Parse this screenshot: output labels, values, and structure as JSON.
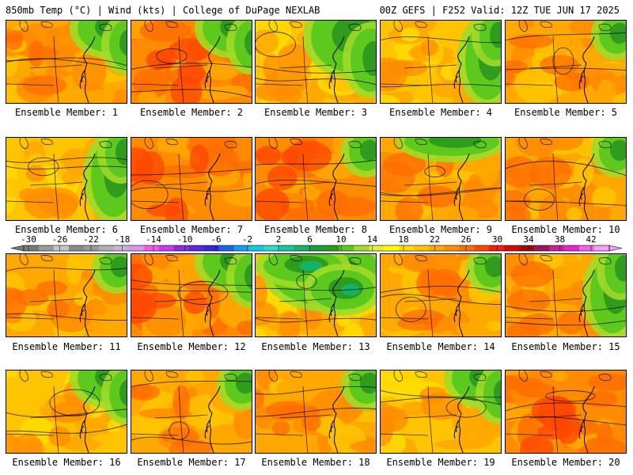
{
  "header": {
    "left": "850mb Temp (°C) | Wind (kts) | College of DuPage NEXLAB",
    "right": "00Z GEFS | F252 Valid: 12Z TUE JUN 17 2025"
  },
  "colorbar": {
    "labels": [
      "-30",
      "-26",
      "-22",
      "-18",
      "-14",
      "-10",
      "-6",
      "-2",
      "2",
      "6",
      "10",
      "14",
      "18",
      "22",
      "26",
      "30",
      "34",
      "38",
      "42"
    ],
    "colors": [
      "#7a7a7a",
      "#9b9b9b",
      "#c5c5c5",
      "#8a8a8a",
      "#9a9a9a",
      "#b0b0b0",
      "#c8b4d8",
      "#d896e8",
      "#f05ae6",
      "#c83ce8",
      "#8c2ce0",
      "#5a28d8",
      "#3628d8",
      "#1e64e6",
      "#14a0f0",
      "#14c8e6",
      "#28dcc8",
      "#14c8a0",
      "#14b46e",
      "#18a03c",
      "#2c9a1e",
      "#5ac81e",
      "#a0dc28",
      "#e6f028",
      "#ffff00",
      "#ffdc00",
      "#ffc400",
      "#ffa800",
      "#ff8c00",
      "#ff6e00",
      "#ff4600",
      "#f01e0a",
      "#d20a0a",
      "#a00a0a",
      "#a0145a",
      "#c81e96",
      "#e628c8",
      "#f064e6",
      "#f5a0f0"
    ]
  },
  "panels": [
    {
      "label": "Ensemble Member: 1",
      "warmth": 0.55,
      "green": "ne"
    },
    {
      "label": "Ensemble Member: 2",
      "warmth": 0.85,
      "green": "ne"
    },
    {
      "label": "Ensemble Member: 3",
      "warmth": 0.4,
      "green": "ne-large"
    },
    {
      "label": "Ensemble Member: 4",
      "warmth": 0.45,
      "green": "east"
    },
    {
      "label": "Ensemble Member: 5",
      "warmth": 0.65,
      "green": "ne-small"
    },
    {
      "label": "Ensemble Member: 6",
      "warmth": 0.45,
      "green": "east"
    },
    {
      "label": "Ensemble Member: 7",
      "warmth": 0.7,
      "green": "none"
    },
    {
      "label": "Ensemble Member: 8",
      "warmth": 0.75,
      "green": "ne-small"
    },
    {
      "label": "Ensemble Member: 9",
      "warmth": 0.55,
      "green": "north"
    },
    {
      "label": "Ensemble Member: 10",
      "warmth": 0.5,
      "green": "ne-small"
    },
    {
      "label": "Ensemble Member: 11",
      "warmth": 0.55,
      "green": "ne-small"
    },
    {
      "label": "Ensemble Member: 12",
      "warmth": 0.8,
      "green": "ne"
    },
    {
      "label": "Ensemble Member: 13",
      "warmth": 0.3,
      "green": "north-large"
    },
    {
      "label": "Ensemble Member: 14",
      "warmth": 0.5,
      "green": "ne-small"
    },
    {
      "label": "Ensemble Member: 15",
      "warmth": 0.55,
      "green": "east"
    },
    {
      "label": "Ensemble Member: 16",
      "warmth": 0.4,
      "green": "ne"
    },
    {
      "label": "Ensemble Member: 17",
      "warmth": 0.5,
      "green": "ne-small"
    },
    {
      "label": "Ensemble Member: 18",
      "warmth": 0.65,
      "green": "ne-small"
    },
    {
      "label": "Ensemble Member: 19",
      "warmth": 0.45,
      "green": "ne"
    },
    {
      "label": "Ensemble Member: 20",
      "warmth": 0.8,
      "green": "none"
    }
  ]
}
